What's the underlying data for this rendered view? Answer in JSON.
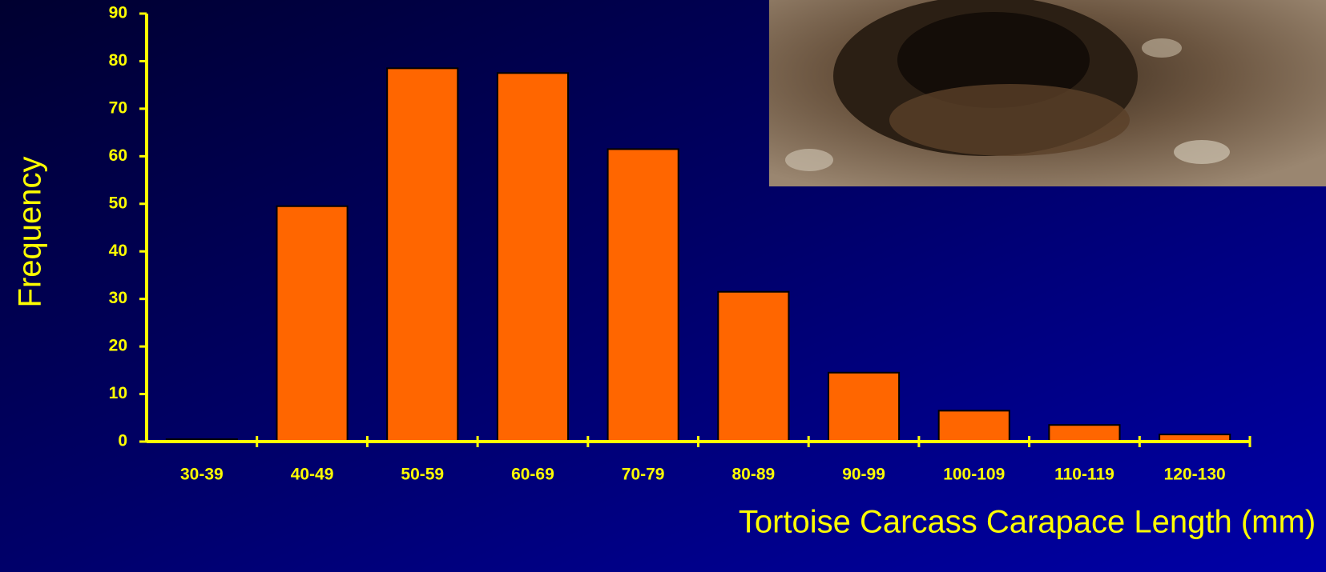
{
  "chart_data": {
    "type": "bar",
    "x_label": "Tortoise Carcass Carapace Length (mm)",
    "y_label": "Frequency",
    "categories": [
      "30-39",
      "40-49",
      "50-59",
      "60-69",
      "70-79",
      "80-89",
      "90-99",
      "100-109",
      "110-119",
      "120-130"
    ],
    "values": [
      0.5,
      49.5,
      78.5,
      77.5,
      61.5,
      31.5,
      14.5,
      6.5,
      3.5,
      1.5
    ],
    "color": "#ff6600",
    "ylim": [
      0,
      90
    ],
    "yticks": [
      0,
      10,
      20,
      30,
      40,
      50,
      60,
      70,
      80,
      90
    ],
    "grid": false
  }
}
